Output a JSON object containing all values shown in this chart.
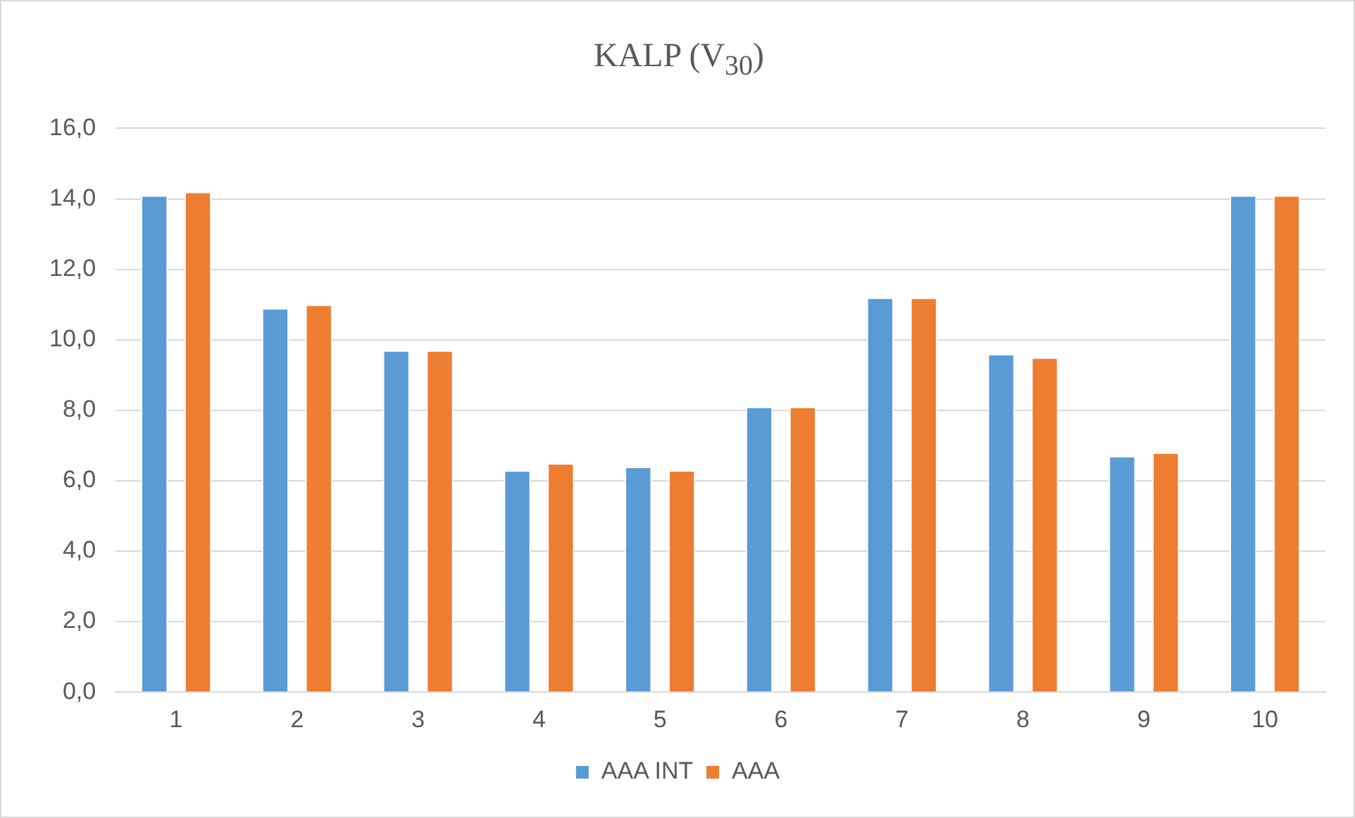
{
  "chart_data": {
    "type": "bar",
    "title": "KALP (V$_{30}$)",
    "categories": [
      "1",
      "2",
      "3",
      "4",
      "5",
      "6",
      "7",
      "8",
      "9",
      "10"
    ],
    "series": [
      {
        "name": "AAA INT",
        "color": "#5b9bd5",
        "values": [
          14.1,
          10.9,
          9.7,
          6.3,
          6.4,
          8.1,
          11.2,
          9.6,
          6.7,
          14.1
        ]
      },
      {
        "name": "AAA",
        "color": "#ed7d31",
        "values": [
          14.2,
          11.0,
          9.7,
          6.5,
          6.3,
          8.1,
          11.2,
          9.5,
          6.8,
          14.1
        ]
      }
    ],
    "ylim": [
      0,
      16
    ],
    "yticks": [
      {
        "value": 0,
        "label": "0,0"
      },
      {
        "value": 2,
        "label": "2,0"
      },
      {
        "value": 4,
        "label": "4,0"
      },
      {
        "value": 6,
        "label": "6,0"
      },
      {
        "value": 8,
        "label": "8,0"
      },
      {
        "value": 10,
        "label": "10,0"
      },
      {
        "value": 12,
        "label": "12,0"
      },
      {
        "value": 14,
        "label": "14,0"
      },
      {
        "value": 16,
        "label": "16,0"
      }
    ],
    "grid": "y",
    "legend": "bottom"
  }
}
